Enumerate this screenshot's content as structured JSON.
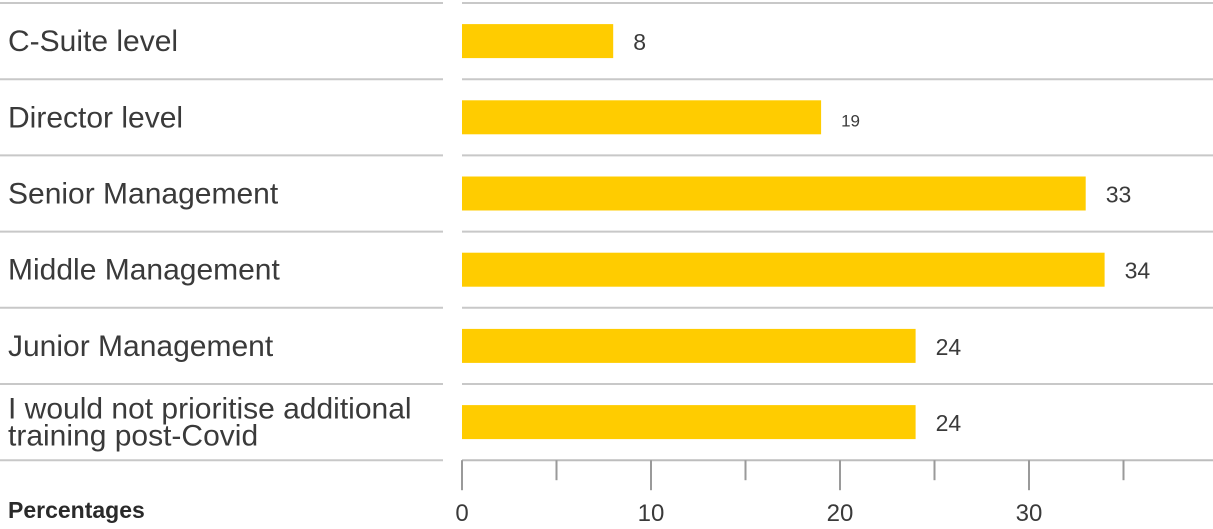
{
  "chart_data": {
    "type": "bar",
    "orientation": "horizontal",
    "categories": [
      "C-Suite level",
      "Director level",
      "Senior Management",
      "Middle Management",
      "Junior Management",
      "I would not prioritise additional training post-Covid"
    ],
    "category_lines": [
      [
        "C-Suite level"
      ],
      [
        "Director level"
      ],
      [
        "Senior Management"
      ],
      [
        "Middle Management"
      ],
      [
        "Junior Management"
      ],
      [
        "I would not prioritise additional",
        "training post-Covid"
      ]
    ],
    "values": [
      8,
      19,
      33,
      34,
      24,
      24
    ],
    "value_labels": [
      "8",
      "19",
      "33",
      "34",
      "24",
      "24"
    ],
    "xlabel": "Percentages",
    "xlim": [
      0,
      40
    ],
    "x_ticks": [
      0,
      10,
      20,
      30
    ],
    "x_tick_labels": [
      "0",
      "10",
      "20",
      "30"
    ],
    "bar_color": "#FFCC00",
    "grid": false
  }
}
